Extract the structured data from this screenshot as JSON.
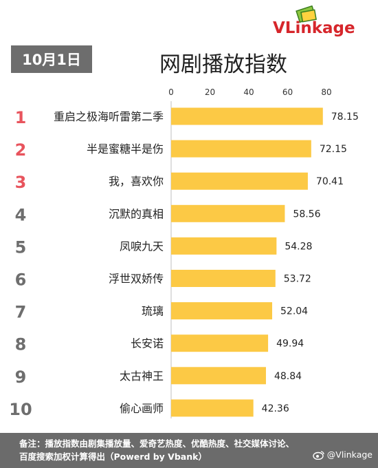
{
  "brand": {
    "logo_text": "VLinkage",
    "logo_color": "#d6262b"
  },
  "header": {
    "date": "10月1日",
    "title": "网剧播放指数"
  },
  "footer": {
    "note_line1": "备注：播放指数由剧集播放量、爱奇艺热度、优酷热度、社交媒体讨论、",
    "note_line2": "百度搜索加权计算得出（Powerd by Vbank）",
    "weibo_handle": "@Vlinkage"
  },
  "chart_data": {
    "type": "bar",
    "orientation": "horizontal",
    "categories": [
      "重启之极海听雷第二季",
      "半是蜜糖半是伤",
      "我，喜欢你",
      "沉默的真相",
      "凤唳九天",
      "浮世双娇传",
      "琉璃",
      "长安诺",
      "太古神王",
      "偷心画师"
    ],
    "ranks": [
      "1",
      "2",
      "3",
      "4",
      "5",
      "6",
      "7",
      "8",
      "9",
      "10"
    ],
    "values": [
      78.15,
      72.15,
      70.41,
      58.56,
      54.28,
      53.72,
      52.04,
      49.94,
      48.84,
      42.36
    ],
    "value_labels": [
      "78.15",
      "72.15",
      "70.41",
      "58.56",
      "54.28",
      "53.72",
      "52.04",
      "49.94",
      "48.84",
      "42.36"
    ],
    "xlim": [
      0,
      80
    ],
    "xticks": [
      0,
      20,
      40,
      60,
      80
    ],
    "xtick_labels": [
      "0",
      "20",
      "40",
      "60",
      "80"
    ],
    "axis_position": "top",
    "grid": false,
    "bar_color": "#fcc945",
    "rank_color_top3": "#e8545d",
    "rank_color_rest": "#6e6e6e"
  }
}
